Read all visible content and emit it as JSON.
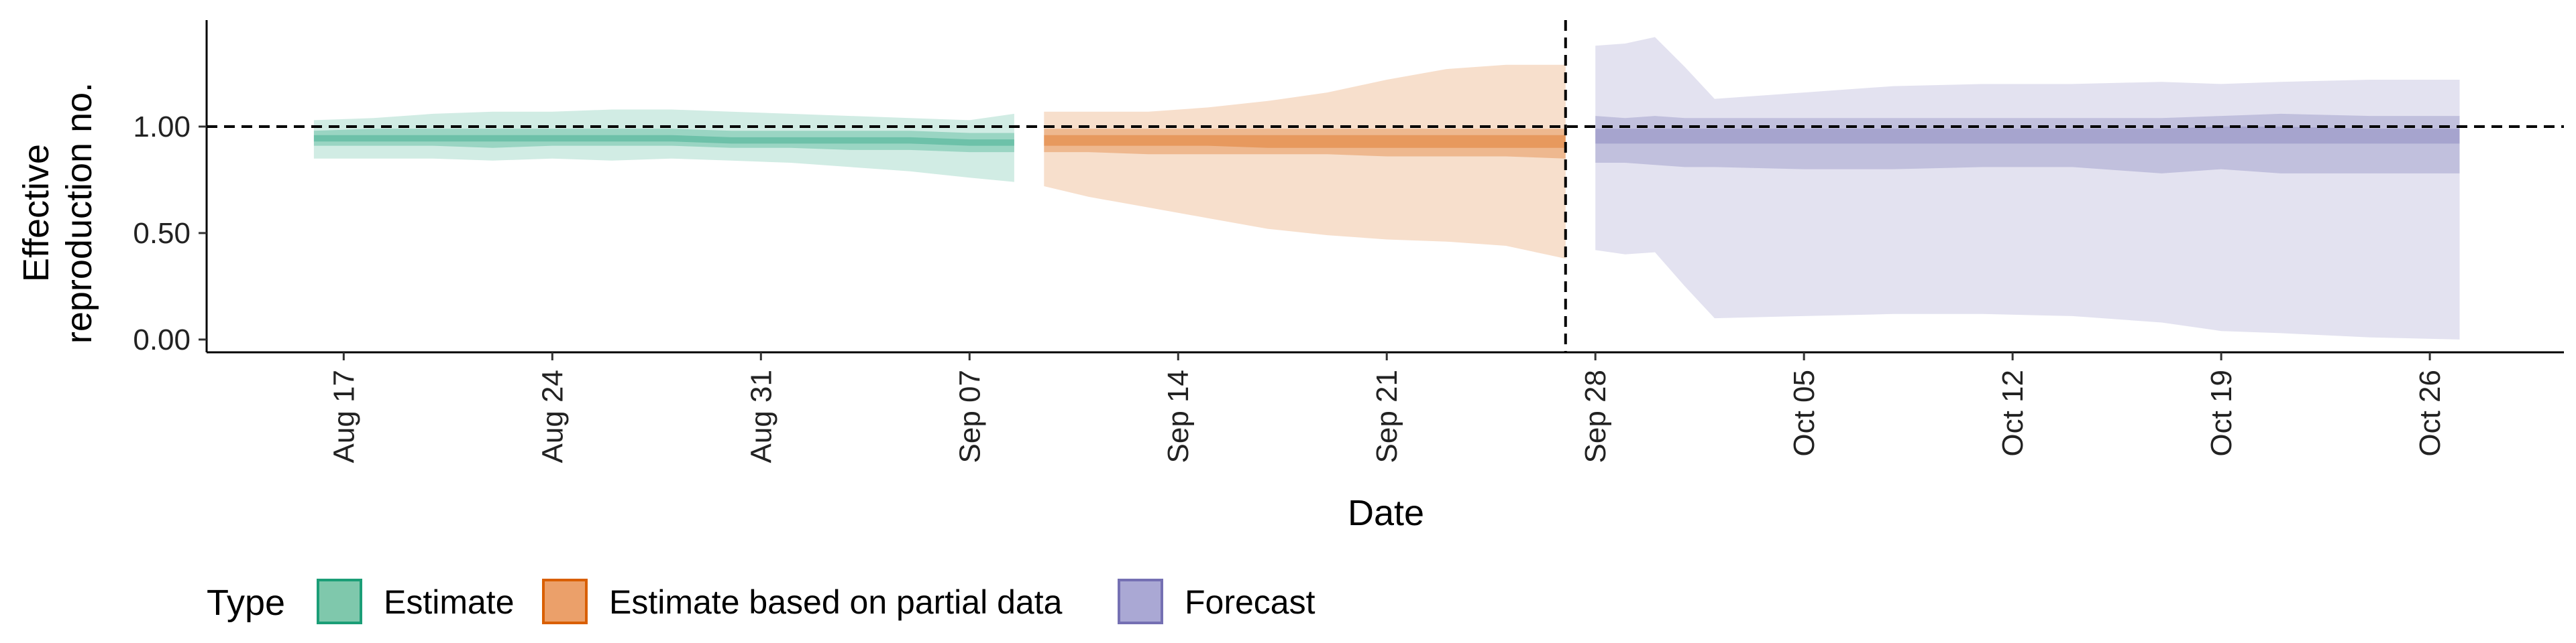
{
  "chart_data": {
    "type": "area",
    "xlabel": "Date",
    "ylabel_line1": "Effective",
    "ylabel_line2": "reproduction no.",
    "x_ticks": [
      "Aug 17",
      "Aug 24",
      "Aug 31",
      "Sep 07",
      "Sep 14",
      "Sep 21",
      "Sep 28",
      "Oct 05",
      "Oct 12",
      "Oct 19",
      "Oct 26"
    ],
    "x_tick_days": [
      0,
      7,
      14,
      21,
      28,
      35,
      42,
      49,
      56,
      63,
      70
    ],
    "y_ticks": [
      "0.00",
      "0.50",
      "1.00"
    ],
    "y_tick_values": [
      0.0,
      0.5,
      1.0
    ],
    "xlim_days": [
      -4.6,
      74.5
    ],
    "ylim": [
      -0.06,
      1.5
    ],
    "reference_hline": 1.0,
    "reference_vline_day": 41.0,
    "grid": false,
    "legend": {
      "title": "Type",
      "position": "bottom-left",
      "entries": [
        {
          "label": "Estimate",
          "fill": "#7fc8ac",
          "stroke": "#1b9e77"
        },
        {
          "label": "Estimate based on partial data",
          "fill": "#eba06a",
          "stroke": "#d95f02"
        },
        {
          "label": "Forecast",
          "fill": "#aaa8d4",
          "stroke": "#7570b3"
        }
      ]
    },
    "series": [
      {
        "name": "Estimate",
        "color": "#1b9e77",
        "x_days": [
          -1,
          1,
          3,
          5,
          7,
          9,
          11,
          13,
          15,
          17,
          19,
          21,
          22.5
        ],
        "outer_upper": [
          1.03,
          1.04,
          1.06,
          1.07,
          1.07,
          1.08,
          1.08,
          1.07,
          1.06,
          1.05,
          1.04,
          1.03,
          1.06
        ],
        "outer_lower": [
          0.85,
          0.85,
          0.85,
          0.84,
          0.85,
          0.84,
          0.85,
          0.84,
          0.83,
          0.81,
          0.79,
          0.76,
          0.74
        ],
        "mid_upper": [
          0.98,
          0.99,
          0.99,
          0.99,
          0.99,
          0.99,
          0.99,
          0.98,
          0.98,
          0.98,
          0.98,
          0.97,
          0.97
        ],
        "mid_lower": [
          0.91,
          0.91,
          0.91,
          0.9,
          0.91,
          0.91,
          0.91,
          0.9,
          0.9,
          0.89,
          0.89,
          0.88,
          0.88
        ],
        "inner_upper": [
          0.96,
          0.96,
          0.96,
          0.96,
          0.96,
          0.96,
          0.96,
          0.95,
          0.95,
          0.95,
          0.95,
          0.94,
          0.94
        ],
        "inner_lower": [
          0.93,
          0.93,
          0.93,
          0.93,
          0.93,
          0.93,
          0.93,
          0.92,
          0.92,
          0.92,
          0.92,
          0.91,
          0.91
        ]
      },
      {
        "name": "Estimate based on partial data",
        "color": "#d95f02",
        "x_days": [
          23.5,
          25,
          27,
          29,
          31,
          33,
          35,
          37,
          39,
          41
        ],
        "outer_upper": [
          1.07,
          1.07,
          1.07,
          1.09,
          1.12,
          1.16,
          1.22,
          1.27,
          1.29,
          1.29
        ],
        "outer_lower": [
          0.72,
          0.67,
          0.62,
          0.57,
          0.52,
          0.49,
          0.47,
          0.46,
          0.44,
          0.38
        ],
        "mid_upper": [
          0.99,
          0.99,
          0.99,
          0.99,
          0.99,
          0.99,
          0.99,
          0.99,
          0.99,
          0.99
        ],
        "mid_lower": [
          0.88,
          0.88,
          0.87,
          0.87,
          0.87,
          0.87,
          0.86,
          0.86,
          0.86,
          0.85
        ],
        "inner_upper": [
          0.96,
          0.96,
          0.96,
          0.96,
          0.96,
          0.96,
          0.96,
          0.96,
          0.96,
          0.96
        ],
        "inner_lower": [
          0.91,
          0.91,
          0.91,
          0.91,
          0.9,
          0.9,
          0.9,
          0.9,
          0.9,
          0.9
        ]
      },
      {
        "name": "Forecast",
        "color": "#7570b3",
        "x_days": [
          42,
          43,
          44,
          45,
          46,
          49,
          52,
          55,
          58,
          61,
          63,
          65,
          68,
          71
        ],
        "outer_upper": [
          1.38,
          1.39,
          1.42,
          1.28,
          1.13,
          1.16,
          1.19,
          1.2,
          1.2,
          1.21,
          1.2,
          1.21,
          1.22,
          1.22
        ],
        "outer_lower": [
          0.42,
          0.4,
          0.41,
          0.25,
          0.1,
          0.11,
          0.12,
          0.12,
          0.11,
          0.08,
          0.04,
          0.03,
          0.01,
          0.0
        ],
        "mid_upper": [
          1.05,
          1.04,
          1.05,
          1.04,
          1.04,
          1.04,
          1.04,
          1.04,
          1.04,
          1.04,
          1.05,
          1.06,
          1.05,
          1.05
        ],
        "mid_lower": [
          0.83,
          0.83,
          0.82,
          0.81,
          0.81,
          0.8,
          0.8,
          0.81,
          0.81,
          0.78,
          0.8,
          0.78,
          0.78,
          0.78
        ],
        "inner_upper": [
          0.99,
          0.99,
          0.99,
          0.99,
          0.99,
          0.99,
          0.99,
          0.99,
          0.99,
          0.99,
          1.0,
          1.0,
          0.99,
          0.99
        ],
        "inner_lower": [
          0.92,
          0.92,
          0.92,
          0.92,
          0.92,
          0.92,
          0.92,
          0.92,
          0.92,
          0.92,
          0.92,
          0.92,
          0.92,
          0.92
        ]
      }
    ]
  }
}
